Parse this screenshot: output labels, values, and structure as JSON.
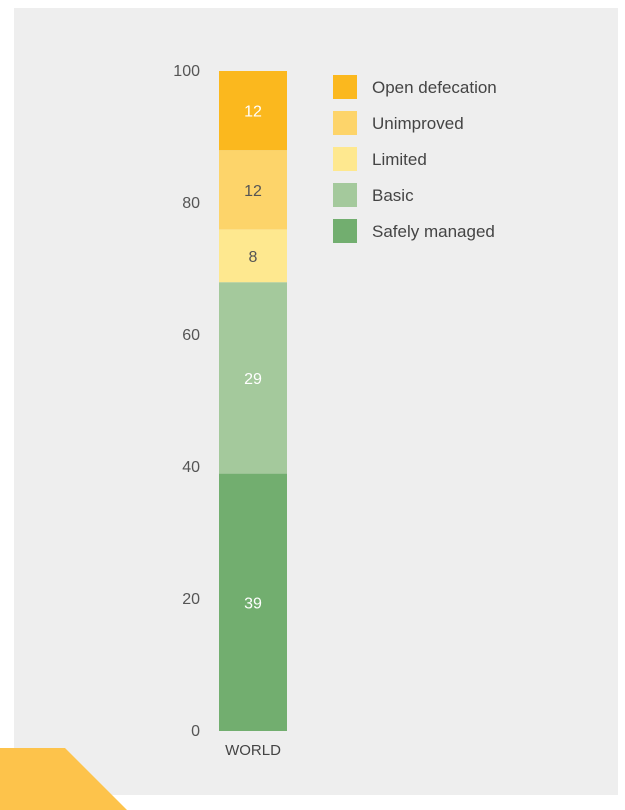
{
  "chart_data": {
    "type": "bar",
    "stacked": true,
    "categories": [
      "WORLD"
    ],
    "ylim": [
      0,
      100
    ],
    "yticks": [
      0,
      20,
      40,
      60,
      80,
      100
    ],
    "series": [
      {
        "name": "Safely managed",
        "values": [
          39
        ],
        "color": "#72ae6f",
        "label_color": "#ffffff"
      },
      {
        "name": "Basic",
        "values": [
          29
        ],
        "color": "#a4c99c",
        "label_color": "#ffffff"
      },
      {
        "name": "Limited",
        "values": [
          8
        ],
        "color": "#fee88f",
        "label_color": "#555555"
      },
      {
        "name": "Unimproved",
        "values": [
          12
        ],
        "color": "#fdd46a",
        "label_color": "#555555"
      },
      {
        "name": "Open defecation",
        "values": [
          12
        ],
        "color": "#fbb81e",
        "label_color": "#ffffff"
      }
    ],
    "legend": {
      "placement": "top-right",
      "order": [
        "Open defecation",
        "Unimproved",
        "Limited",
        "Basic",
        "Safely managed"
      ]
    },
    "grid": false
  },
  "decoration": {
    "corner_color": "#fdc34b",
    "panel_color": "#eeeeee"
  }
}
